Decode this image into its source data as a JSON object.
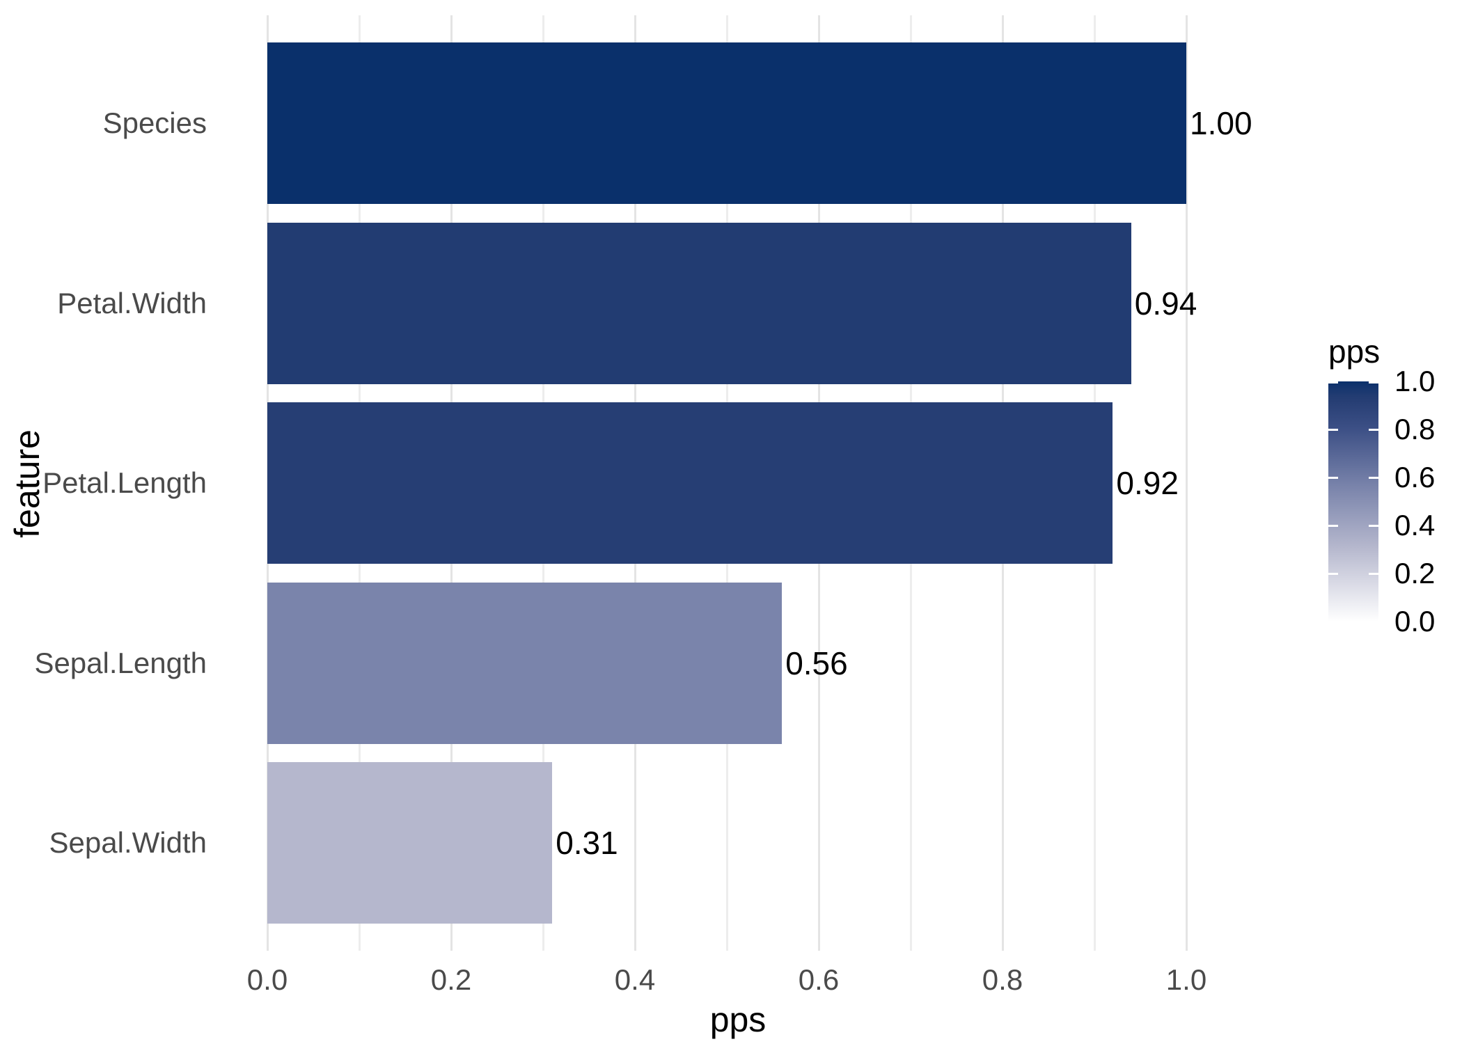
{
  "chart_data": {
    "type": "bar",
    "orientation": "horizontal",
    "title": "",
    "xlabel": "pps",
    "ylabel": "feature",
    "categories": [
      "Species",
      "Petal.Width",
      "Petal.Length",
      "Sepal.Length",
      "Sepal.Width"
    ],
    "values": [
      1.0,
      0.94,
      0.92,
      0.56,
      0.31
    ],
    "bar_labels": [
      "1.00",
      "0.94",
      "0.92",
      "0.56",
      "0.31"
    ],
    "bar_colors": [
      "#0A306B",
      "#223C72",
      "#263E74",
      "#7A84AB",
      "#B5B7CD"
    ],
    "xlim": [
      0.0,
      1.0
    ],
    "x_ticks": {
      "values": [
        0.0,
        0.2,
        0.4,
        0.6,
        0.8,
        1.0
      ],
      "labels": [
        "0.0",
        "0.2",
        "0.4",
        "0.6",
        "0.8",
        "1.0"
      ]
    },
    "x_minor_ticks": [
      0.1,
      0.3,
      0.5,
      0.7,
      0.9
    ],
    "grid": "vertical gridlines only, light gray, on white background",
    "legend": {
      "title": "pps",
      "position": "right",
      "type": "continuous-gradient",
      "gradient_top_color": "#0A306B",
      "gradient_bottom_color": "#FFFFFF",
      "gradient_stops": [
        {
          "at": 0.0,
          "color": "#0A306B"
        },
        {
          "at": 0.06,
          "color": "#223C72"
        },
        {
          "at": 0.08,
          "color": "#263E74"
        },
        {
          "at": 0.2,
          "color": "#3D5086"
        },
        {
          "at": 0.44,
          "color": "#7A84AB"
        },
        {
          "at": 0.69,
          "color": "#B5B7CD"
        },
        {
          "at": 1.0,
          "color": "#FFFFFF"
        }
      ],
      "ticks": [
        {
          "value": 1.0,
          "label": "1.0"
        },
        {
          "value": 0.8,
          "label": "0.8"
        },
        {
          "value": 0.6,
          "label": "0.6"
        },
        {
          "value": 0.4,
          "label": "0.4"
        },
        {
          "value": 0.2,
          "label": "0.2"
        },
        {
          "value": 0.0,
          "label": "0.0"
        }
      ]
    }
  },
  "colors": {
    "background": "#FFFFFF",
    "grid_major": "#E4E4E4",
    "grid_minor": "#EDEDED",
    "tick_label": "#4A4A4A",
    "axis_title": "#000000",
    "bar_label": "#000000"
  }
}
